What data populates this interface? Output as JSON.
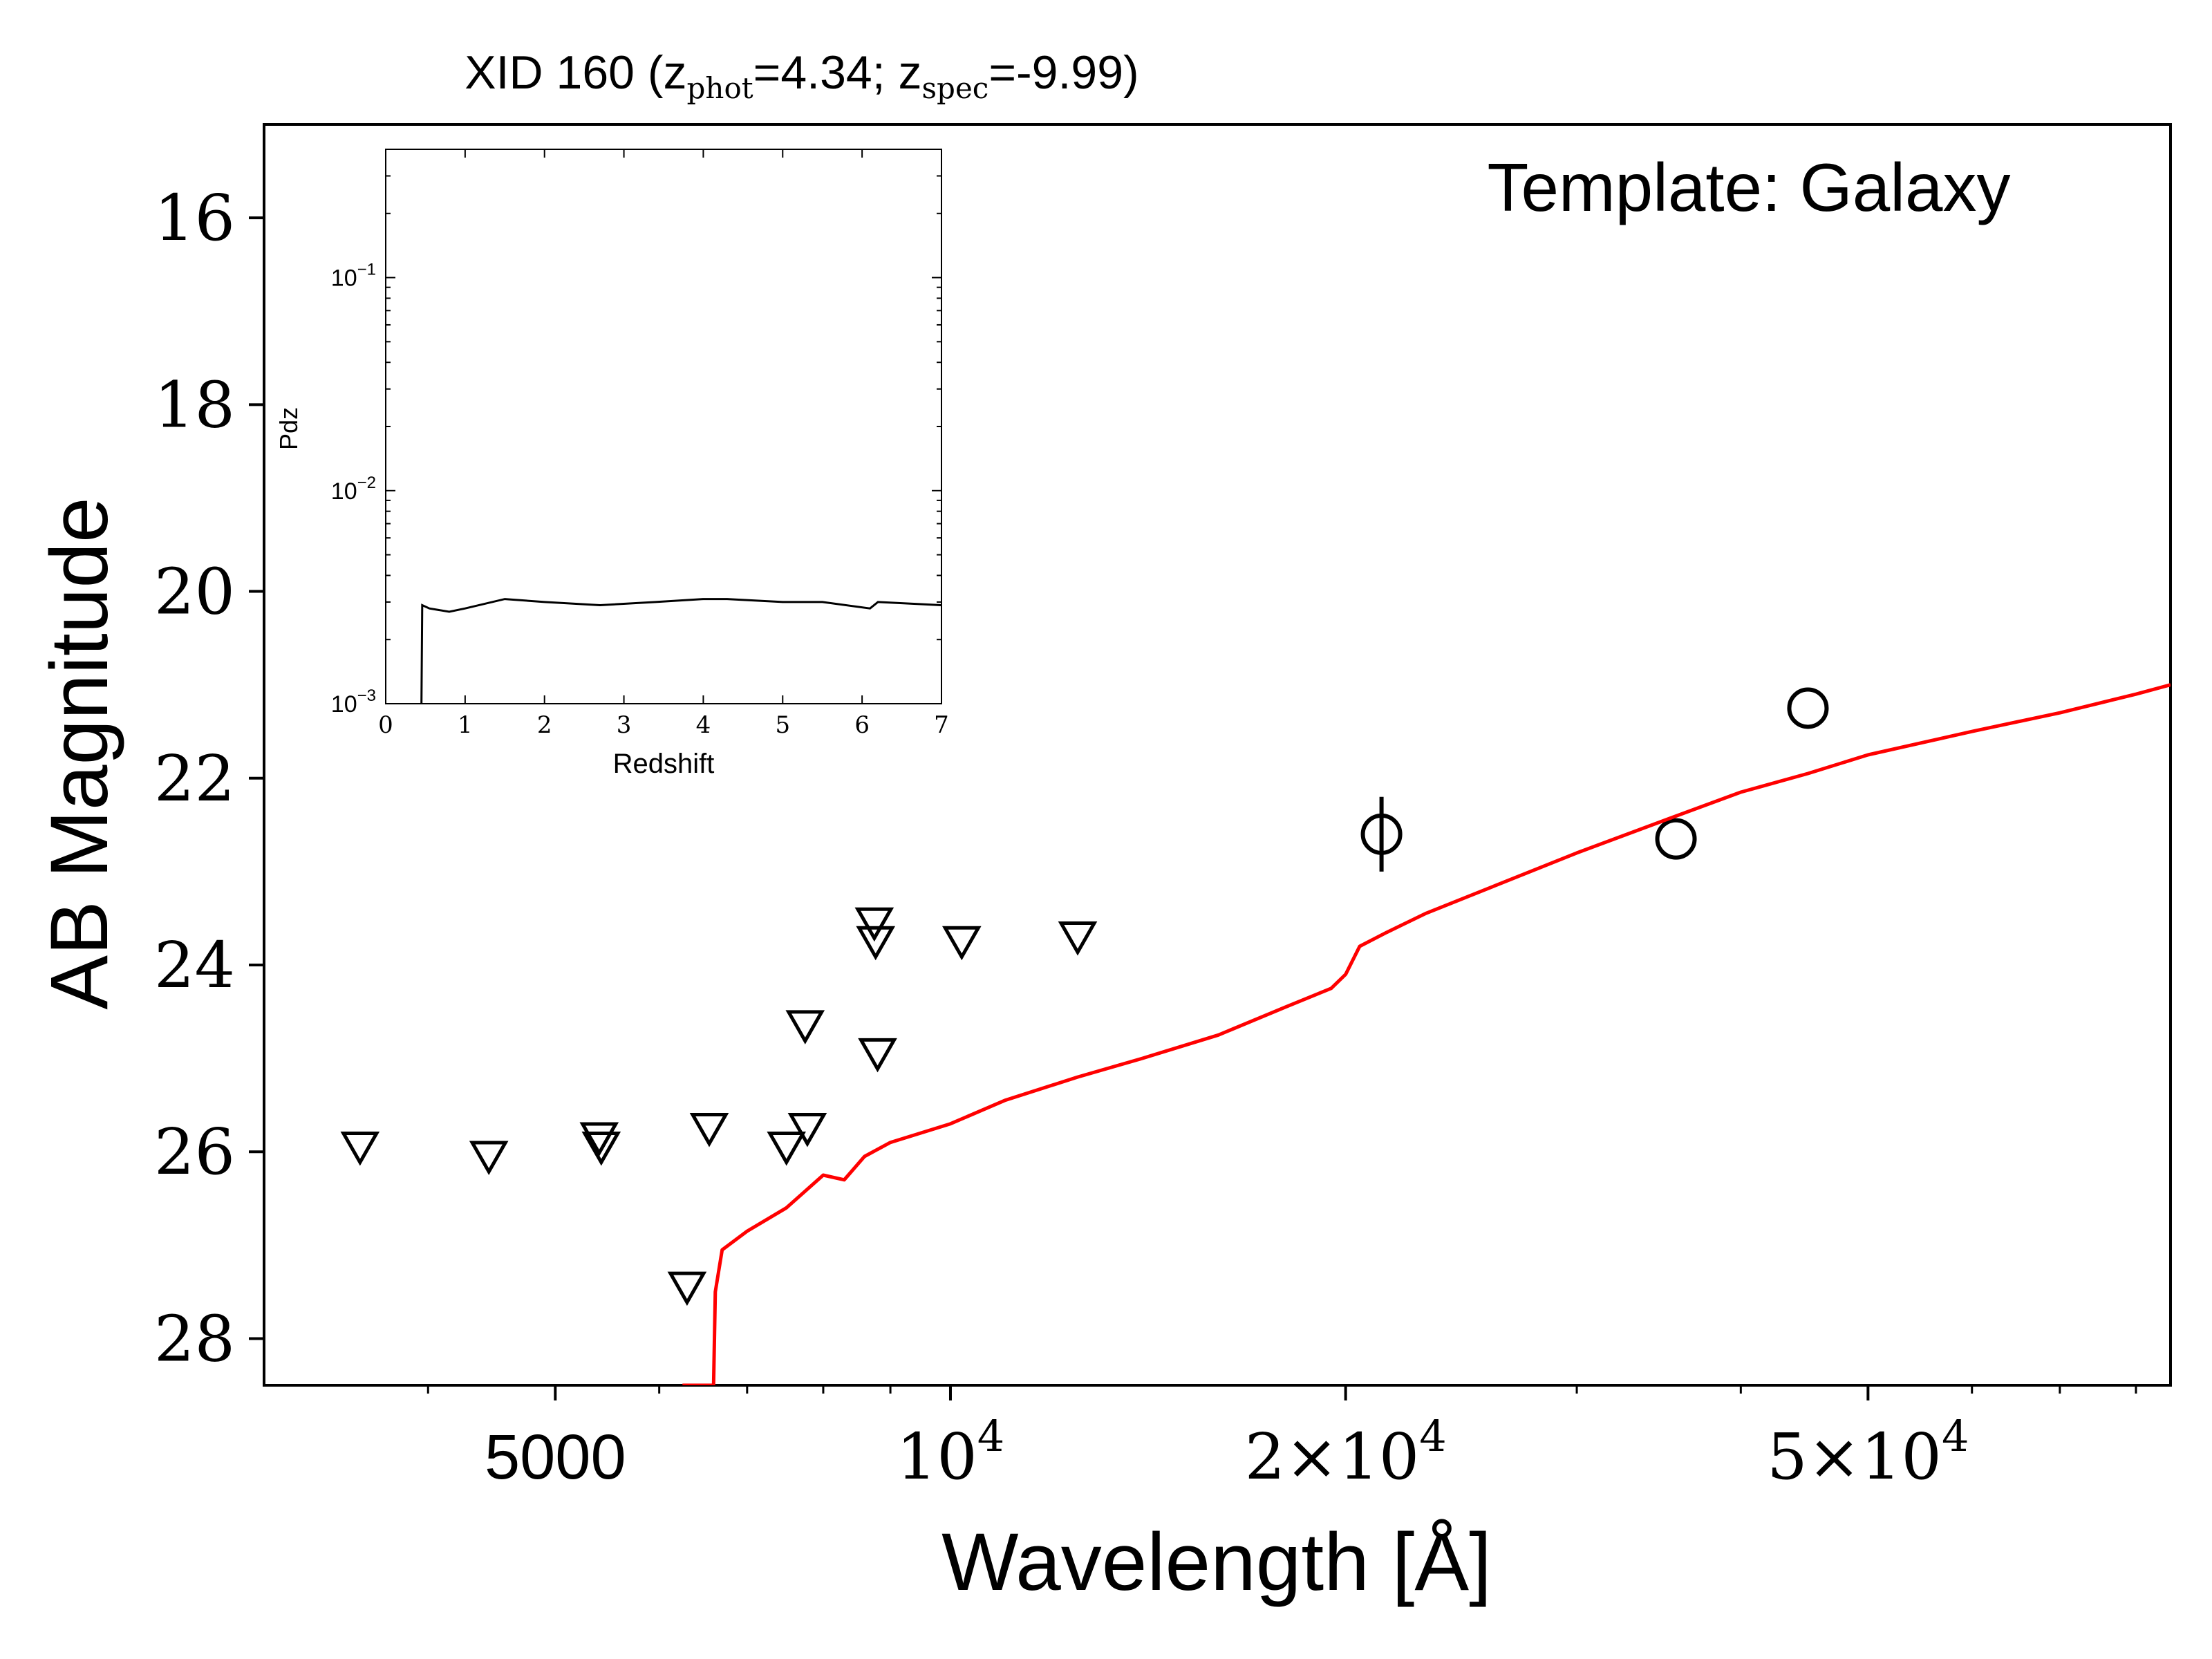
{
  "chart_data": {
    "type": "scatter",
    "title_parts": {
      "prefix": "XID 160 (z",
      "phot_sub": "phot",
      "mid": "=4.34; z",
      "spec_sub": "spec",
      "suffix": "=-9.99)"
    },
    "annotation": "Template: Galaxy",
    "xlabel": "Wavelength [Å]",
    "ylabel": "AB Magnitude",
    "x_scale": "log",
    "y_inverted": true,
    "xlim": [
      3000,
      85000
    ],
    "ylim": [
      28.5,
      15
    ],
    "y_ticks": [
      16,
      18,
      20,
      22,
      24,
      26,
      28
    ],
    "x_ticks": [
      {
        "value": 5000,
        "base": "5000",
        "exp": ""
      },
      {
        "value": 10000,
        "base": "10",
        "exp": "4"
      },
      {
        "value": 20000,
        "base": "2×10",
        "exp": "4"
      },
      {
        "value": 50000,
        "base": "5×10",
        "exp": "4"
      }
    ],
    "colors": {
      "template": "#ff0000",
      "markers": "#000000"
    },
    "series": [
      {
        "role": "upper-limits",
        "marker": "triangle-down",
        "points": [
          {
            "x": 3550,
            "y": 25.95
          },
          {
            "x": 4450,
            "y": 26.05
          },
          {
            "x": 5400,
            "y": 25.85
          },
          {
            "x": 5420,
            "y": 25.95
          },
          {
            "x": 6300,
            "y": 27.45
          },
          {
            "x": 6550,
            "y": 25.75
          },
          {
            "x": 7500,
            "y": 25.95
          },
          {
            "x": 7750,
            "y": 24.65
          },
          {
            "x": 7780,
            "y": 25.75
          },
          {
            "x": 8750,
            "y": 23.55
          },
          {
            "x": 8770,
            "y": 23.75
          },
          {
            "x": 8800,
            "y": 24.95
          },
          {
            "x": 10200,
            "y": 23.75
          },
          {
            "x": 12500,
            "y": 23.7
          }
        ]
      },
      {
        "role": "detections",
        "marker": "circle",
        "points": [
          {
            "x": 21300,
            "y": 22.6,
            "yerr": 0.4
          },
          {
            "x": 35700,
            "y": 22.65,
            "yerr": 0.08
          },
          {
            "x": 45000,
            "y": 21.25,
            "yerr": 0.08
          }
        ]
      },
      {
        "role": "template",
        "line": true,
        "points": [
          {
            "x": 6250,
            "y": 28.5
          },
          {
            "x": 6600,
            "y": 28.5
          },
          {
            "x": 6620,
            "y": 27.5
          },
          {
            "x": 6700,
            "y": 27.05
          },
          {
            "x": 7000,
            "y": 26.85
          },
          {
            "x": 7500,
            "y": 26.6
          },
          {
            "x": 8000,
            "y": 26.25
          },
          {
            "x": 8300,
            "y": 26.3
          },
          {
            "x": 8600,
            "y": 26.05
          },
          {
            "x": 9000,
            "y": 25.9
          },
          {
            "x": 10000,
            "y": 25.7
          },
          {
            "x": 11000,
            "y": 25.45
          },
          {
            "x": 12500,
            "y": 25.2
          },
          {
            "x": 14000,
            "y": 25.0
          },
          {
            "x": 16000,
            "y": 24.75
          },
          {
            "x": 18000,
            "y": 24.45
          },
          {
            "x": 19500,
            "y": 24.25
          },
          {
            "x": 20000,
            "y": 24.1
          },
          {
            "x": 20500,
            "y": 23.8
          },
          {
            "x": 21500,
            "y": 23.65
          },
          {
            "x": 23000,
            "y": 23.45
          },
          {
            "x": 26000,
            "y": 23.15
          },
          {
            "x": 30000,
            "y": 22.8
          },
          {
            "x": 35000,
            "y": 22.45
          },
          {
            "x": 40000,
            "y": 22.15
          },
          {
            "x": 45000,
            "y": 21.95
          },
          {
            "x": 50000,
            "y": 21.75
          },
          {
            "x": 60000,
            "y": 21.5
          },
          {
            "x": 70000,
            "y": 21.3
          },
          {
            "x": 80000,
            "y": 21.1
          },
          {
            "x": 85000,
            "y": 21.0
          }
        ]
      }
    ],
    "inset": {
      "type": "line",
      "xlabel": "Redshift",
      "ylabel": "Pdz",
      "xlim": [
        0,
        7
      ],
      "y_scale": "log",
      "ylim": [
        0.001,
        0.4
      ],
      "x_ticks": [
        0,
        1,
        2,
        3,
        4,
        5,
        6,
        7
      ],
      "y_ticks": [
        {
          "value": 0.001,
          "base": "10",
          "exp": "−3"
        },
        {
          "value": 0.01,
          "base": "10",
          "exp": "−2"
        },
        {
          "value": 0.1,
          "base": "10",
          "exp": "−1"
        }
      ],
      "series": [
        {
          "points": [
            {
              "x": 0.45,
              "y": 0.001
            },
            {
              "x": 0.46,
              "y": 0.0029
            },
            {
              "x": 0.55,
              "y": 0.0028
            },
            {
              "x": 0.8,
              "y": 0.0027
            },
            {
              "x": 1.0,
              "y": 0.0028
            },
            {
              "x": 1.5,
              "y": 0.0031
            },
            {
              "x": 2.0,
              "y": 0.003
            },
            {
              "x": 2.7,
              "y": 0.0029
            },
            {
              "x": 3.4,
              "y": 0.003
            },
            {
              "x": 4.0,
              "y": 0.0031
            },
            {
              "x": 4.3,
              "y": 0.0031
            },
            {
              "x": 5.0,
              "y": 0.003
            },
            {
              "x": 5.5,
              "y": 0.003
            },
            {
              "x": 6.1,
              "y": 0.0028
            },
            {
              "x": 6.2,
              "y": 0.003
            },
            {
              "x": 7.0,
              "y": 0.0029
            }
          ]
        }
      ]
    }
  }
}
